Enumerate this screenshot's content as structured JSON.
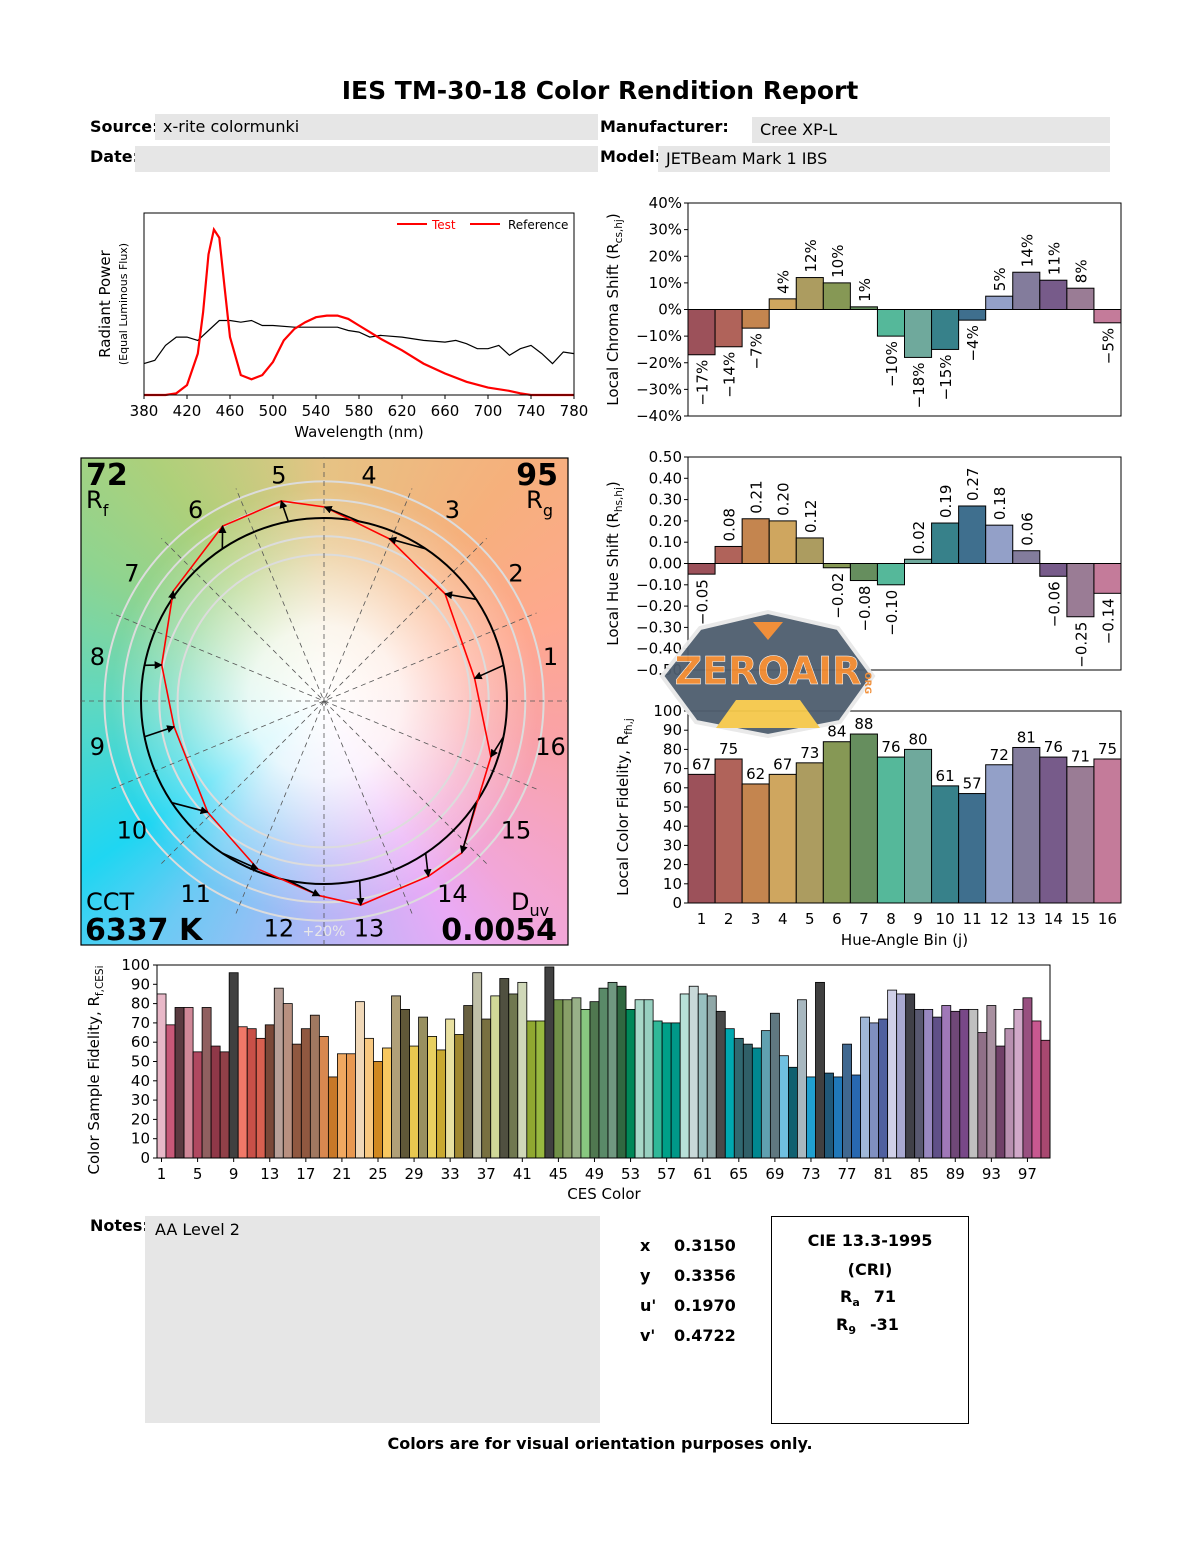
{
  "title": "IES TM-30-18 Color Rendition Report",
  "header": {
    "source_label": "Source:",
    "source_value": "x-rite colormunki",
    "manufacturer_label": "Manufacturer:",
    "manufacturer_value": "Cree XP-L",
    "date_label": "Date:",
    "date_value": "",
    "model_label": "Model:",
    "model_value": "JETBeam Mark 1 IBS"
  },
  "watermark": {
    "text": "ZEROAIR",
    "suffix": "ORG"
  },
  "colors": {
    "test": "#ff0000",
    "reference": "#000000",
    "bins": [
      "#9c515a",
      "#b0635a",
      "#c4854f",
      "#cfa65f",
      "#ac9c60",
      "#869855",
      "#668e5e",
      "#55b89a",
      "#6fa99c",
      "#37818a",
      "#3f6f8e",
      "#93a0c8",
      "#837c9c",
      "#775b8a",
      "#9a7c95",
      "#c47b9a"
    ]
  },
  "chart_data": [
    {
      "type": "line",
      "id": "spectrum",
      "xlabel": "Wavelength (nm)",
      "ylabel": "Radiant Power",
      "ylabel_sub": "(Equal Luminous Flux)",
      "xlim": [
        380,
        780
      ],
      "ylim": [
        0,
        1.1
      ],
      "x_ticks": [
        380,
        420,
        460,
        500,
        540,
        580,
        620,
        660,
        700,
        740,
        780
      ],
      "legend": {
        "position": "top-right",
        "entries": [
          "Test",
          "Reference"
        ]
      },
      "series": [
        {
          "name": "Test",
          "color": "#ff0000",
          "x": [
            380,
            400,
            410,
            420,
            430,
            435,
            440,
            445,
            450,
            455,
            460,
            470,
            480,
            490,
            500,
            510,
            520,
            530,
            540,
            550,
            560,
            570,
            580,
            590,
            600,
            620,
            640,
            660,
            680,
            700,
            720,
            730,
            740,
            780
          ],
          "y": [
            0,
            0,
            0.01,
            0.06,
            0.25,
            0.5,
            0.85,
            1.0,
            0.95,
            0.65,
            0.35,
            0.12,
            0.095,
            0.12,
            0.2,
            0.33,
            0.4,
            0.44,
            0.47,
            0.48,
            0.48,
            0.46,
            0.42,
            0.38,
            0.34,
            0.27,
            0.19,
            0.13,
            0.08,
            0.045,
            0.025,
            0.01,
            0,
            0
          ]
        },
        {
          "name": "Reference",
          "color": "#000000",
          "x": [
            380,
            390,
            400,
            410,
            420,
            430,
            440,
            450,
            460,
            470,
            480,
            490,
            500,
            520,
            540,
            560,
            570,
            580,
            590,
            600,
            620,
            640,
            660,
            670,
            680,
            690,
            700,
            710,
            720,
            730,
            740,
            750,
            760,
            770,
            780
          ],
          "y": [
            0.19,
            0.21,
            0.3,
            0.35,
            0.35,
            0.33,
            0.39,
            0.45,
            0.45,
            0.44,
            0.45,
            0.42,
            0.42,
            0.41,
            0.41,
            0.41,
            0.39,
            0.38,
            0.35,
            0.36,
            0.35,
            0.33,
            0.32,
            0.33,
            0.31,
            0.28,
            0.28,
            0.3,
            0.24,
            0.28,
            0.3,
            0.25,
            0.19,
            0.26,
            0.25
          ]
        }
      ]
    },
    {
      "type": "bar",
      "id": "chroma-shift",
      "ylabel": "Local Chroma Shift (R",
      "ylabel_sub": "cs,hj",
      "ylabel_end": ")",
      "ylim": [
        -40,
        40
      ],
      "y_ticks": [
        "40%",
        "30%",
        "20%",
        "10%",
        "0%",
        "−10%",
        "−20%",
        "−30%",
        "−40%"
      ],
      "categories": [
        1,
        2,
        3,
        4,
        5,
        6,
        7,
        8,
        9,
        10,
        11,
        12,
        13,
        14,
        15,
        16
      ],
      "values": [
        -17,
        -14,
        -7,
        4,
        12,
        10,
        1,
        -10,
        -18,
        -15,
        -4,
        5,
        14,
        11,
        8,
        -5
      ],
      "labels": [
        "−17%",
        "−14%",
        "−7%",
        "4%",
        "12%",
        "10%",
        "1%",
        "−10%",
        "−18%",
        "−15%",
        "−4%",
        "5%",
        "14%",
        "11%",
        "8%",
        "−5%"
      ]
    },
    {
      "type": "bar",
      "id": "hue-shift",
      "ylabel": "Local Hue Shift (R",
      "ylabel_sub": "hs,hj",
      "ylabel_end": ")",
      "ylim": [
        -0.5,
        0.5
      ],
      "y_ticks": [
        "0.50",
        "0.40",
        "0.30",
        "0.20",
        "0.10",
        "0.00",
        "−0.10",
        "−0.20",
        "−0.30",
        "−0.40",
        "−0.50"
      ],
      "categories": [
        1,
        2,
        3,
        4,
        5,
        6,
        7,
        8,
        9,
        10,
        11,
        12,
        13,
        14,
        15,
        16
      ],
      "values": [
        -0.05,
        0.08,
        0.21,
        0.2,
        0.12,
        -0.02,
        -0.08,
        -0.1,
        0.02,
        0.19,
        0.27,
        0.18,
        0.06,
        -0.06,
        -0.25,
        -0.14
      ],
      "labels": [
        "−0.05",
        "0.08",
        "0.21",
        "0.20",
        "0.12",
        "−0.02",
        "−0.08",
        "−0.10",
        "0.02",
        "0.19",
        "0.27",
        "0.18",
        "0.06",
        "−0.06",
        "−0.25",
        "−0.14"
      ]
    },
    {
      "type": "bar",
      "id": "local-fidelity",
      "ylabel": "Local Color Fidelity, R",
      "ylabel_sub": "fh,j",
      "xlabel": "Hue-Angle Bin (j)",
      "ylim": [
        0,
        100
      ],
      "y_ticks": [
        "100",
        "90",
        "80",
        "70",
        "60",
        "50",
        "40",
        "30",
        "20",
        "10",
        "0"
      ],
      "categories": [
        "1",
        "2",
        "3",
        "4",
        "5",
        "6",
        "7",
        "8",
        "9",
        "10",
        "11",
        "12",
        "13",
        "14",
        "15",
        "16"
      ],
      "values": [
        67,
        75,
        62,
        67,
        73,
        84,
        88,
        76,
        80,
        61,
        57,
        72,
        81,
        76,
        71,
        75
      ],
      "labels": [
        "67",
        "75",
        "62",
        "67",
        "73",
        "84",
        "88",
        "76",
        "80",
        "61",
        "57",
        "72",
        "81",
        "76",
        "71",
        "75"
      ]
    },
    {
      "type": "polar-vector",
      "id": "color-vector-graphic",
      "bin_labels": [
        "1",
        "2",
        "3",
        "4",
        "5",
        "6",
        "7",
        "8",
        "9",
        "10",
        "11",
        "12",
        "13",
        "14",
        "15",
        "16"
      ],
      "test_points": [
        [
          0.823,
          0.124
        ],
        [
          0.662,
          0.585
        ],
        [
          0.356,
          0.887
        ],
        [
          0.004,
          1.06
        ],
        [
          -0.234,
          1.093
        ],
        [
          -0.554,
          0.956
        ],
        [
          -0.824,
          0.6
        ],
        [
          -0.887,
          0.197
        ],
        [
          -0.819,
          -0.141
        ],
        [
          -0.636,
          -0.607
        ],
        [
          -0.362,
          -0.918
        ],
        [
          -0.024,
          -1.064
        ],
        [
          0.201,
          -1.115
        ],
        [
          0.57,
          -0.958
        ],
        [
          0.753,
          -0.83
        ],
        [
          0.912,
          -0.305
        ]
      ],
      "reference_radius": 1,
      "grid_circles": [
        0.8,
        0.9,
        1.1,
        1.2
      ],
      "scale_label": "+20%",
      "rf_value": "72",
      "rf_label": "R",
      "rf_sub": "f",
      "rg_value": "95",
      "rg_label": "R",
      "rg_sub": "g",
      "cct_label": "CCT",
      "cct_value": "6337 K",
      "duv_label": "D",
      "duv_sub": "uv",
      "duv_value": "0.0054"
    },
    {
      "type": "bar",
      "id": "ces-fidelity",
      "xlabel": "CES Color",
      "ylabel": "Color Sample Fidelity, R",
      "ylabel_sub": "f,CESi",
      "ylim": [
        0,
        100
      ],
      "y_ticks": [
        "100",
        "90",
        "80",
        "70",
        "60",
        "50",
        "40",
        "30",
        "20",
        "10",
        "0"
      ],
      "x_ticks": [
        "1",
        "5",
        "9",
        "13",
        "17",
        "21",
        "25",
        "29",
        "33",
        "37",
        "41",
        "45",
        "49",
        "53",
        "57",
        "61",
        "65",
        "69",
        "73",
        "77",
        "81",
        "85",
        "89",
        "93",
        "97"
      ],
      "values": [
        85,
        69,
        78,
        78,
        55,
        78,
        58,
        55,
        96,
        68,
        67,
        62,
        69,
        88,
        80,
        59,
        67,
        74,
        63,
        42,
        54,
        54,
        81,
        62,
        50,
        57,
        84,
        77,
        58,
        73,
        63,
        56,
        72,
        64,
        79,
        96,
        72,
        84,
        93,
        85,
        91,
        71,
        71,
        99,
        82,
        82,
        83,
        77,
        81,
        88,
        91,
        89,
        77,
        82,
        82,
        71,
        70,
        70,
        85,
        89,
        85,
        84,
        76,
        67,
        62,
        59,
        57,
        66,
        75,
        53,
        47,
        82,
        42,
        91,
        44,
        42,
        59,
        43,
        73,
        70,
        72,
        87,
        85,
        85,
        77,
        77,
        73,
        79,
        76,
        77,
        77,
        65,
        79,
        58,
        67,
        77,
        83,
        71,
        61
      ],
      "colors": [
        "#e8b8c8",
        "#c85878",
        "#5a3a40",
        "#d08898",
        "#b04860",
        "#906060",
        "#903848",
        "#904048",
        "#404040",
        "#f07868",
        "#c85048",
        "#d86050",
        "#7a4838",
        "#b8a098",
        "#b89080",
        "#905840",
        "#905840",
        "#a07860",
        "#d88850",
        "#c87828",
        "#f0a860",
        "#e89850",
        "#f0d8b8",
        "#f8c880",
        "#d08820",
        "#f8c860",
        "#b0a078",
        "#605838",
        "#e8c850",
        "#989060",
        "#e8d060",
        "#c8a830",
        "#e8e0a0",
        "#a08830",
        "#686040",
        "#c0c0a8",
        "#787040",
        "#d0d898",
        "#505040",
        "#707850",
        "#d0d8b8",
        "#90a830",
        "#98b840",
        "#404040",
        "#709048",
        "#88a068",
        "#98b088",
        "#88c880",
        "#507850",
        "#5a8a68",
        "#709880",
        "#306840",
        "#008858",
        "#a8d8c8",
        "#98d0c0",
        "#30b898",
        "#00a088",
        "#009888",
        "#b8e0d8",
        "#c8d8d8",
        "#98c0c0",
        "#90a8a8",
        "#484848",
        "#00a8b0",
        "#306870",
        "#306068",
        "#008890",
        "#60a0b0",
        "#607880",
        "#70c0e0",
        "#106070",
        "#a8b8c0",
        "#20a0d0",
        "#404040",
        "#205878",
        "#2078b8",
        "#406890",
        "#2868b0",
        "#a0b8d8",
        "#8090c0",
        "#5060a0",
        "#d0d0e8",
        "#a8a8d0",
        "#404048",
        "#585870",
        "#9888c0",
        "#605088",
        "#a078b8",
        "#704878",
        "#784888",
        "#c0c0c0",
        "#907088",
        "#a890a0",
        "#704068",
        "#b890b0",
        "#d0a8c8",
        "#985080",
        "#c85890",
        "#a84870"
      ]
    }
  ],
  "notes": {
    "label": "Notes:",
    "value": "AA Level 2"
  },
  "chromaticity": [
    {
      "label": "x",
      "value": "0.3150"
    },
    {
      "label": "y",
      "value": "0.3356"
    },
    {
      "label": "u'",
      "value": "0.1970"
    },
    {
      "label": "v'",
      "value": "0.4722"
    }
  ],
  "cri": {
    "title": "CIE 13.3-1995",
    "subtitle": "(CRI)",
    "ra_label": "R",
    "ra_sub": "a",
    "ra_value": "71",
    "r9_label": "R",
    "r9_sub": "9",
    "r9_value": "-31"
  },
  "footer": "Colors are for visual orientation purposes only."
}
